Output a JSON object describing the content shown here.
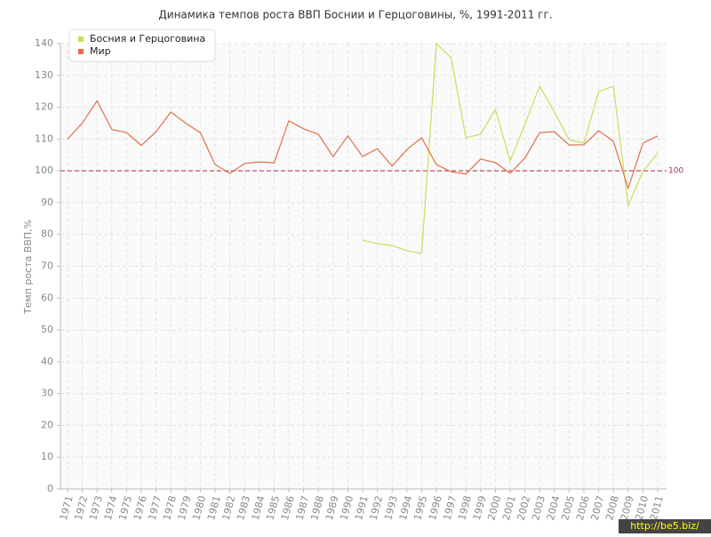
{
  "chart_data": {
    "type": "line",
    "title": "Динамика темпов роста ВВП Боснии и Герцоговины, %, 1991-2011 гг.",
    "y_label": "Темп роста ВВП,%",
    "categories": [
      "1971",
      "1972",
      "1973",
      "1974",
      "1975",
      "1976",
      "1977",
      "1978",
      "1979",
      "1980",
      "1981",
      "1982",
      "1983",
      "1984",
      "1985",
      "1986",
      "1987",
      "1988",
      "1989",
      "1990",
      "1991",
      "1992",
      "1993",
      "1994",
      "1995",
      "1996",
      "1997",
      "1998",
      "1999",
      "2000",
      "2001",
      "2002",
      "2003",
      "2004",
      "2005",
      "2006",
      "2007",
      "2008",
      "2009",
      "2010",
      "2011"
    ],
    "series": [
      {
        "name": "Босния и Герцоговина",
        "color": "#c5e05a",
        "values": [
          null,
          null,
          null,
          null,
          null,
          null,
          null,
          null,
          null,
          null,
          null,
          null,
          null,
          null,
          null,
          null,
          null,
          null,
          null,
          null,
          78.2,
          77.1,
          76.5,
          74.9,
          74,
          140,
          135.5,
          110.4,
          111.5,
          119.3,
          103.1,
          114.6,
          126.6,
          118.5,
          109.8,
          108.7,
          124.9,
          126.6,
          89.1,
          99.8,
          105.6
        ]
      },
      {
        "name": "Мир",
        "color": "#e0704a",
        "values": [
          110,
          115,
          122,
          113,
          112,
          108,
          112.3,
          118.5,
          115,
          112,
          102,
          99.2,
          102.3,
          102.8,
          102.5,
          115.7,
          113.2,
          111.5,
          104.5,
          111,
          104.5,
          107,
          101.5,
          106.7,
          110.4,
          102,
          99.7,
          99,
          103.7,
          102.6,
          99.2,
          104,
          112,
          112.3,
          108.1,
          108.2,
          112.6,
          109.3,
          94.5,
          108.7,
          111
        ]
      }
    ],
    "reference_line": 100,
    "reference_color": "#a83246",
    "ylim": [
      0,
      140
    ],
    "yticks": [
      0,
      10,
      20,
      30,
      40,
      50,
      60,
      70,
      80,
      90,
      100,
      110,
      120,
      130,
      140
    ],
    "grid": true,
    "legend": "top-left",
    "watermark": "http://be5.biz/"
  }
}
